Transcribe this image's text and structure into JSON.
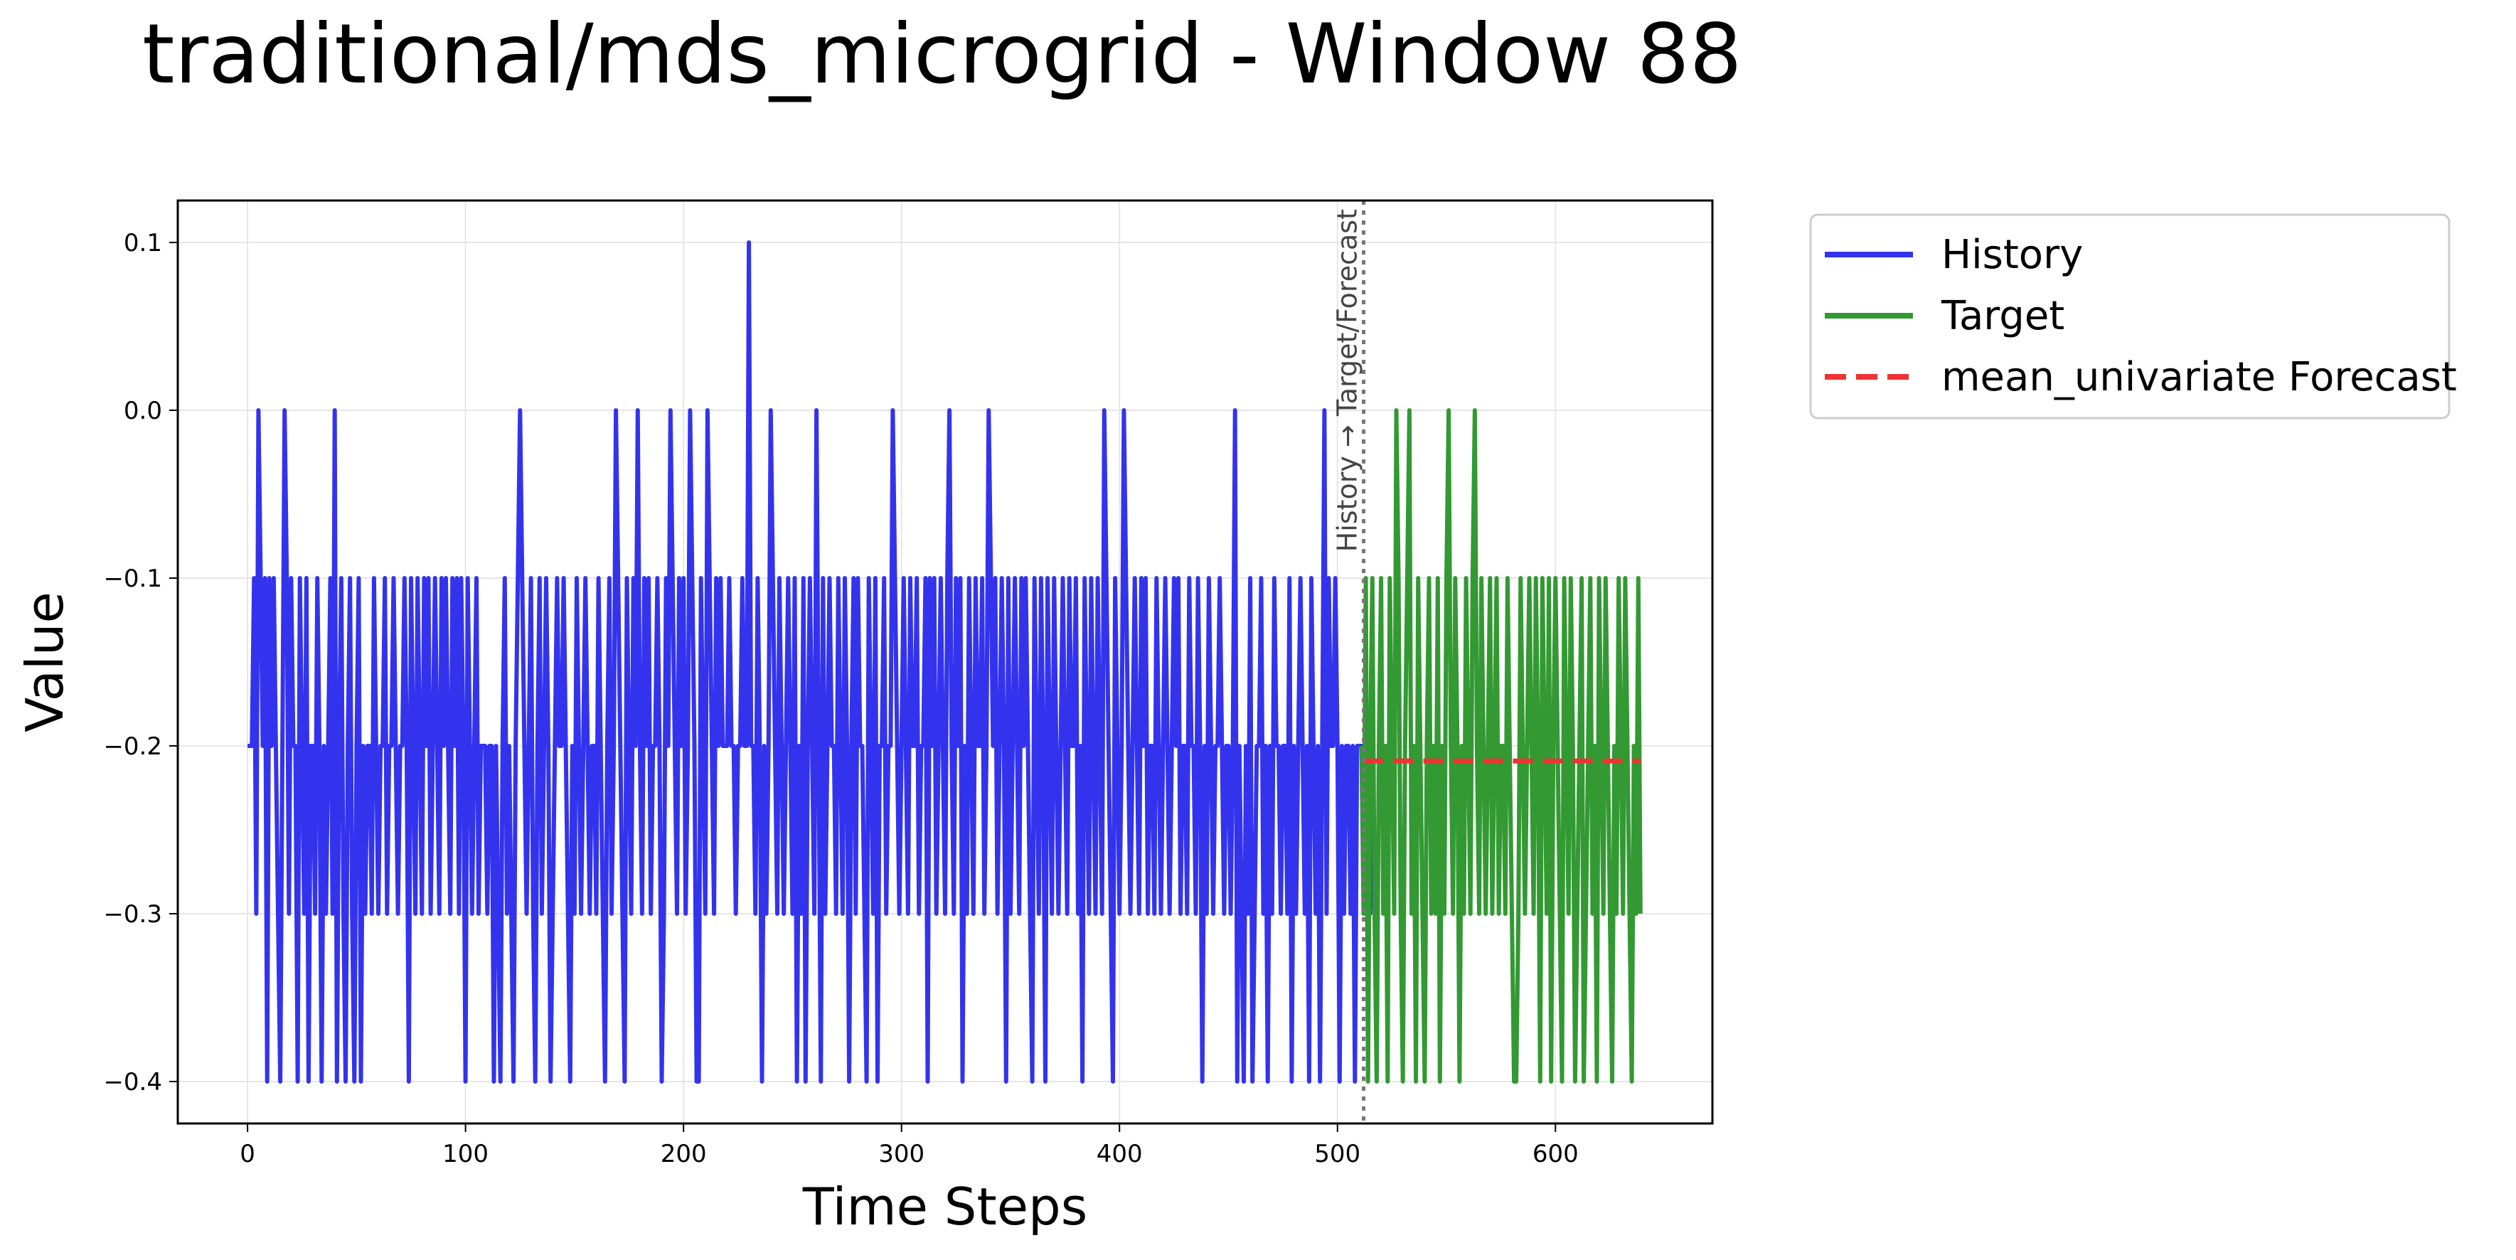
{
  "chart_data": {
    "type": "line",
    "title": "traditional/mds_microgrid - Window 88",
    "xlabel": "Time Steps",
    "ylabel": "Value",
    "xlim": [
      -32,
      672
    ],
    "ylim": [
      -0.425,
      0.125
    ],
    "xticks": [
      0,
      100,
      200,
      300,
      400,
      500,
      600
    ],
    "yticks": [
      0.1,
      0.0,
      -0.1,
      -0.2,
      -0.3,
      -0.4
    ],
    "ytick_labels": [
      "0.1",
      "0.0",
      "−0.1",
      "−0.2",
      "−0.3",
      "−0.4"
    ],
    "grid": true,
    "legend_position": "outside-top-right",
    "divider": {
      "x": 512,
      "label": "History → Target/Forecast",
      "color": "#777777"
    },
    "series": [
      {
        "name": "History",
        "color": "#3333ee",
        "x_start": 0,
        "values": [
          -0.2,
          -0.2,
          -0.2,
          -0.1,
          -0.3,
          0.0,
          -0.1,
          -0.2,
          -0.1,
          -0.4,
          -0.1,
          -0.2,
          -0.1,
          -0.2,
          -0.3,
          -0.4,
          -0.2,
          0.0,
          -0.1,
          -0.3,
          -0.1,
          -0.2,
          -0.2,
          -0.4,
          -0.1,
          -0.2,
          -0.3,
          -0.1,
          -0.4,
          -0.2,
          -0.2,
          -0.3,
          -0.1,
          -0.2,
          -0.4,
          -0.2,
          -0.3,
          -0.2,
          -0.1,
          -0.3,
          0.0,
          -0.4,
          -0.2,
          -0.1,
          -0.3,
          -0.4,
          -0.2,
          -0.1,
          -0.3,
          -0.4,
          -0.2,
          -0.1,
          -0.4,
          -0.2,
          -0.3,
          -0.2,
          -0.2,
          -0.3,
          -0.1,
          -0.2,
          -0.3,
          -0.2,
          -0.2,
          -0.1,
          -0.3,
          -0.2,
          -0.2,
          -0.1,
          -0.2,
          -0.3,
          -0.2,
          -0.2,
          -0.1,
          -0.2,
          -0.4,
          -0.1,
          -0.2,
          -0.3,
          -0.1,
          -0.2,
          -0.3,
          -0.1,
          -0.2,
          -0.1,
          -0.3,
          -0.2,
          -0.1,
          -0.2,
          -0.3,
          -0.1,
          -0.2,
          -0.1,
          -0.2,
          -0.3,
          -0.1,
          -0.2,
          -0.1,
          -0.3,
          -0.1,
          -0.2,
          -0.4,
          -0.1,
          -0.2,
          -0.3,
          -0.2,
          -0.1,
          -0.3,
          -0.2,
          -0.2,
          -0.2,
          -0.3,
          -0.2,
          -0.2,
          -0.4,
          -0.2,
          -0.3,
          -0.4,
          -0.2,
          -0.1,
          -0.3,
          -0.2,
          -0.3,
          -0.4,
          -0.2,
          -0.1,
          0.0,
          -0.1,
          -0.2,
          -0.3,
          -0.2,
          -0.1,
          -0.3,
          -0.4,
          -0.2,
          -0.1,
          -0.3,
          -0.2,
          -0.1,
          -0.2,
          -0.4,
          -0.3,
          -0.2,
          -0.1,
          -0.2,
          -0.2,
          -0.1,
          -0.2,
          -0.3,
          -0.4,
          -0.2,
          -0.3,
          -0.1,
          -0.2,
          -0.3,
          -0.2,
          -0.1,
          -0.2,
          -0.3,
          -0.2,
          -0.2,
          -0.3,
          -0.1,
          -0.2,
          -0.3,
          -0.4,
          -0.2,
          -0.1,
          -0.3,
          -0.2,
          0.0,
          -0.1,
          -0.2,
          -0.3,
          -0.4,
          -0.1,
          -0.2,
          -0.3,
          -0.1,
          -0.2,
          0.0,
          -0.2,
          -0.3,
          -0.1,
          -0.2,
          -0.1,
          -0.3,
          -0.2,
          -0.2,
          -0.1,
          -0.2,
          -0.4,
          -0.3,
          -0.1,
          -0.2,
          0.0,
          -0.1,
          -0.2,
          -0.3,
          -0.1,
          -0.2,
          -0.1,
          -0.3,
          -0.2,
          0.0,
          -0.1,
          -0.2,
          -0.4,
          -0.4,
          -0.1,
          -0.2,
          -0.3,
          0.0,
          -0.1,
          -0.2,
          -0.3,
          -0.1,
          -0.2,
          -0.1,
          -0.2,
          -0.2,
          -0.2,
          -0.1,
          -0.2,
          -0.2,
          -0.3,
          -0.2,
          -0.2,
          -0.1,
          -0.2,
          -0.2,
          0.1,
          -0.2,
          -0.2,
          -0.3,
          -0.1,
          -0.2,
          -0.4,
          -0.2,
          -0.3,
          -0.2,
          0.0,
          -0.1,
          -0.2,
          -0.3,
          -0.1,
          -0.2,
          -0.3,
          -0.2,
          -0.1,
          -0.2,
          -0.3,
          -0.1,
          -0.4,
          -0.2,
          -0.3,
          -0.1,
          -0.4,
          -0.2,
          -0.1,
          -0.2,
          -0.3,
          0.0,
          -0.2,
          -0.4,
          -0.1,
          -0.3,
          -0.2,
          -0.1,
          -0.2,
          -0.2,
          -0.3,
          -0.1,
          -0.2,
          -0.3,
          -0.1,
          -0.2,
          -0.4,
          -0.2,
          -0.1,
          -0.3,
          -0.1,
          -0.2,
          -0.2,
          -0.3,
          -0.4,
          -0.1,
          -0.2,
          -0.3,
          -0.1,
          -0.4,
          -0.2,
          -0.2,
          -0.1,
          -0.3,
          -0.2,
          -0.2,
          0.0,
          -0.1,
          -0.2,
          -0.3,
          -0.2,
          -0.1,
          -0.2,
          -0.3,
          -0.1,
          -0.2,
          -0.2,
          -0.1,
          -0.3,
          -0.2,
          -0.2,
          -0.1,
          -0.4,
          -0.1,
          -0.2,
          -0.1,
          -0.3,
          -0.2,
          -0.1,
          -0.2,
          -0.3,
          -0.1,
          0.0,
          -0.2,
          -0.3,
          -0.1,
          -0.2,
          -0.1,
          -0.4,
          -0.2,
          -0.3,
          -0.1,
          -0.2,
          -0.3,
          -0.1,
          -0.2,
          -0.2,
          -0.1,
          -0.3,
          -0.2,
          0.0,
          -0.1,
          -0.2,
          -0.1,
          -0.3,
          -0.2,
          -0.1,
          -0.2,
          -0.4,
          -0.1,
          -0.3,
          -0.2,
          -0.1,
          -0.2,
          -0.3,
          -0.1,
          -0.2,
          -0.1,
          -0.2,
          -0.3,
          -0.4,
          -0.1,
          -0.2,
          -0.3,
          -0.1,
          -0.2,
          -0.4,
          -0.1,
          -0.2,
          -0.3,
          -0.1,
          -0.2,
          -0.3,
          -0.2,
          -0.1,
          -0.2,
          -0.3,
          -0.1,
          -0.2,
          -0.2,
          -0.1,
          -0.3,
          -0.2,
          -0.4,
          -0.1,
          -0.2,
          -0.3,
          -0.1,
          -0.2,
          -0.3,
          -0.1,
          -0.2,
          -0.3,
          0.0,
          -0.1,
          -0.2,
          -0.3,
          -0.4,
          -0.1,
          -0.2,
          -0.3,
          -0.2,
          0.0,
          -0.1,
          -0.2,
          -0.3,
          -0.2,
          -0.1,
          -0.2,
          -0.3,
          -0.1,
          -0.2,
          -0.1,
          -0.3,
          -0.2,
          -0.2,
          -0.3,
          -0.1,
          -0.2,
          -0.3,
          -0.2,
          -0.1,
          -0.2,
          -0.3,
          -0.2,
          -0.1,
          -0.2,
          -0.1,
          -0.3,
          -0.2,
          -0.2,
          -0.3,
          -0.1,
          -0.2,
          -0.2,
          -0.3,
          -0.1,
          -0.2,
          -0.4,
          -0.2,
          -0.3,
          -0.1,
          -0.2,
          -0.3,
          -0.2,
          -0.2,
          -0.1,
          -0.2,
          -0.3,
          -0.2,
          -0.2,
          -0.3,
          -0.2,
          0.0,
          -0.4,
          -0.2,
          -0.3,
          -0.4,
          -0.2,
          -0.3,
          -0.1,
          -0.4,
          -0.3,
          -0.2,
          -0.2,
          -0.1,
          -0.3,
          -0.2,
          -0.4,
          -0.2,
          -0.3,
          -0.1,
          -0.2,
          -0.2,
          -0.3,
          -0.2,
          -0.2,
          -0.3,
          -0.1,
          -0.4,
          -0.2,
          -0.3,
          -0.2,
          -0.1,
          -0.2,
          -0.3,
          -0.2,
          -0.4,
          -0.1,
          -0.2,
          -0.3,
          -0.2,
          -0.4,
          -0.2,
          0.0,
          -0.3,
          -0.1,
          -0.2,
          -0.2,
          -0.1,
          -0.2,
          -0.4,
          -0.2,
          -0.3,
          -0.2,
          -0.2,
          -0.3,
          -0.2,
          -0.4,
          -0.2,
          -0.2,
          -0.2,
          -0.2,
          -0.2,
          -0.2,
          -0.3,
          -0.2,
          -0.2
        ]
      },
      {
        "name": "Target",
        "color": "#339933",
        "x_start": 511,
        "values": [
          -0.2,
          -0.3,
          -0.1,
          -0.4,
          -0.2,
          -0.1,
          -0.3,
          -0.4,
          -0.2,
          -0.1,
          -0.3,
          -0.2,
          -0.4,
          -0.1,
          -0.2,
          -0.3,
          0.0,
          -0.1,
          -0.3,
          -0.4,
          -0.2,
          -0.1,
          0.0,
          -0.3,
          -0.2,
          -0.4,
          -0.1,
          -0.2,
          -0.3,
          -0.4,
          -0.2,
          -0.1,
          -0.3,
          -0.2,
          -0.3,
          -0.1,
          -0.4,
          -0.2,
          -0.3,
          -0.1,
          0.0,
          -0.2,
          -0.3,
          -0.1,
          -0.2,
          -0.4,
          -0.2,
          -0.3,
          -0.1,
          -0.2,
          -0.3,
          -0.1,
          0.0,
          -0.2,
          -0.3,
          -0.1,
          -0.2,
          -0.3,
          -0.2,
          -0.1,
          -0.3,
          -0.2,
          -0.1,
          -0.3,
          -0.2,
          -0.2,
          -0.3,
          -0.1,
          -0.2,
          -0.3,
          -0.4,
          -0.4,
          -0.3,
          -0.1,
          -0.2,
          -0.3,
          -0.2,
          -0.1,
          -0.2,
          -0.3,
          -0.1,
          -0.2,
          -0.4,
          -0.1,
          -0.2,
          -0.3,
          -0.1,
          -0.4,
          -0.2,
          -0.1,
          -0.2,
          -0.3,
          -0.4,
          -0.1,
          -0.2,
          -0.3,
          -0.1,
          -0.2,
          -0.4,
          -0.3,
          -0.2,
          -0.1,
          -0.4,
          -0.3,
          -0.2,
          -0.1,
          -0.3,
          -0.2,
          -0.4,
          -0.1,
          -0.2,
          -0.3,
          -0.1,
          -0.2,
          -0.3,
          -0.4,
          -0.2,
          -0.3,
          -0.1,
          -0.2,
          -0.3,
          -0.1,
          -0.2,
          -0.3,
          -0.4,
          -0.2,
          -0.3,
          -0.1,
          -0.3
        ]
      },
      {
        "name": "mean_univariate Forecast",
        "color": "#ee3333",
        "dashed": true,
        "x": [
          512,
          639
        ],
        "values": [
          -0.209,
          -0.209
        ]
      }
    ]
  }
}
